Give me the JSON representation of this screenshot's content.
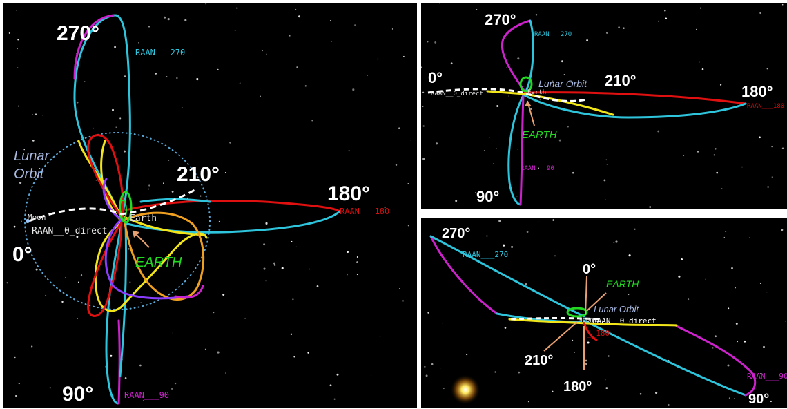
{
  "panels": {
    "main": {
      "angles": {
        "a270": "270°",
        "a210": "210°",
        "a180": "180°",
        "a0": "0°",
        "a90": "90°"
      },
      "raan_labels": {
        "r270": "RAAN___270",
        "r180": "RAAN___180",
        "r90": "RAAN___90",
        "r0": "RAAN__0_direct"
      },
      "lunar_orbit": [
        "Lunar",
        "Orbit"
      ],
      "moon": "Moon",
      "earth_small": "Earth",
      "earth_big": "EARTH"
    },
    "top_right": {
      "angles": {
        "a270": "270°",
        "a0": "0°",
        "a210": "210°",
        "a180": "180°",
        "a90": "90°"
      },
      "raan_labels": {
        "r270": "RAAN___270",
        "r180": "RAAN___180",
        "r90": "RAAN___90",
        "r0": "RAAN__0_direct"
      },
      "lunar_orbit": "Lunar Orbit",
      "earth_small": "Earth",
      "earth_big": "EARTH"
    },
    "bottom_right": {
      "angles": {
        "a270": "270°",
        "a0": "0°",
        "a210": "210°",
        "a180": "180°",
        "a90": "90°"
      },
      "raan_labels": {
        "r270": "RAAN___270",
        "r90": "RAAN___90",
        "r0": "RAAN__0_direct",
        "r180": "__180"
      },
      "lunar_orbit": "Lunar Orbit",
      "moon": "Moon",
      "earth_big": "EARTH"
    }
  },
  "colors": {
    "cyan": "#2ec4dc",
    "magenta": "#cc22cc",
    "yellow": "#f2e61a",
    "red": "#e01010",
    "orange": "#f0a020",
    "green": "#22d822",
    "purple": "#8a3cff",
    "arrow": "#e8a070",
    "lunar_text": "#a8b8e0",
    "raan_cyan": "#2ec4dc",
    "raan_magenta": "#cc22cc",
    "raan_red": "#d01010"
  }
}
